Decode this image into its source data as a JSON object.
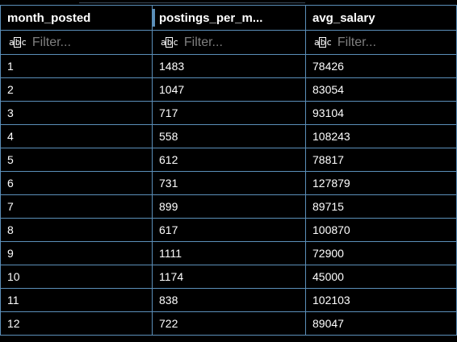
{
  "grid": {
    "columns": [
      "month_posted",
      "postings_per_m...",
      "avg_salary"
    ],
    "filter_placeholder": "Filter...",
    "filter_icon_text": {
      "a": "a",
      "b": "b",
      "c": "c"
    },
    "rows": [
      [
        "1",
        "1483",
        "78426"
      ],
      [
        "2",
        "1047",
        "83054"
      ],
      [
        "3",
        "717",
        "93104"
      ],
      [
        "4",
        "558",
        "108243"
      ],
      [
        "5",
        "612",
        "78817"
      ],
      [
        "6",
        "731",
        "127879"
      ],
      [
        "7",
        "899",
        "89715"
      ],
      [
        "8",
        "617",
        "100870"
      ],
      [
        "9",
        "1111",
        "72900"
      ],
      [
        "10",
        "1174",
        "45000"
      ],
      [
        "11",
        "838",
        "102103"
      ],
      [
        "12",
        "722",
        "89047"
      ]
    ]
  },
  "colors": {
    "background": "#000000",
    "grid_line": "#5b8fb9",
    "text": "#ffffff",
    "placeholder": "#7f7f7f"
  },
  "icons": [
    "abc-icon"
  ]
}
